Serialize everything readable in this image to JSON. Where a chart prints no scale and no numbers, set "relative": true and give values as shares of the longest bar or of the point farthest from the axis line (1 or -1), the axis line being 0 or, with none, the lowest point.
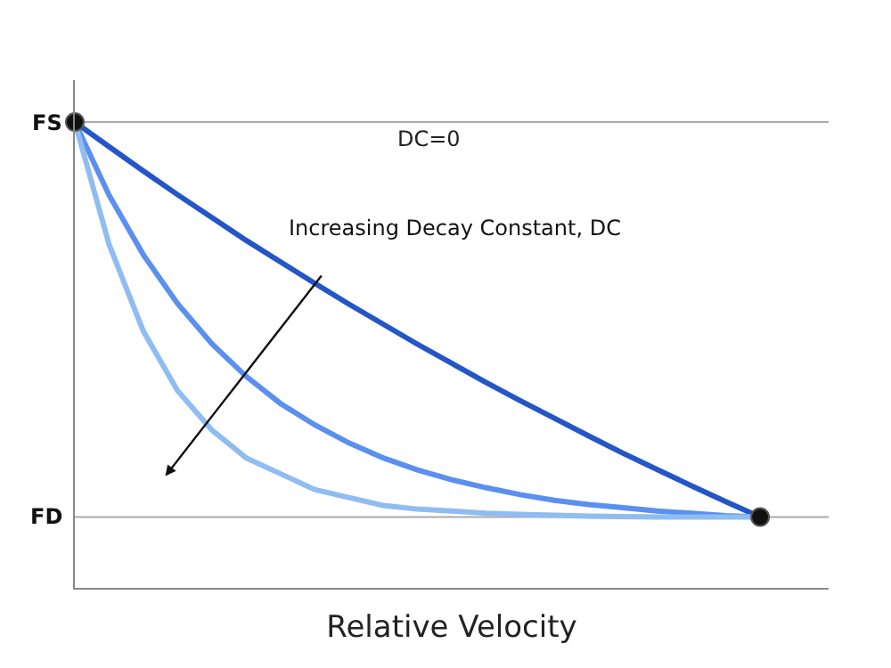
{
  "chart_data": {
    "type": "line",
    "xlabel": "Relative Velocity",
    "relative": true,
    "categories": [
      null,
      null,
      null,
      null,
      null,
      null,
      null,
      null,
      null,
      null,
      null,
      null,
      null,
      null,
      null,
      null,
      null,
      null,
      null,
      null,
      null
    ],
    "tick_labels": false,
    "marker": "none",
    "line_style": "solid",
    "ref_lines": [
      {
        "axis": "y",
        "value": 1,
        "label": "FS",
        "color": "#aaaaaa"
      },
      {
        "axis": "y",
        "value": 0.152,
        "label": "FD",
        "color": "#aaaaaa"
      }
    ],
    "series": [
      {
        "color": "#2456c8",
        "values": [
          1,
          0.947,
          0.895,
          0.844,
          0.795,
          0.746,
          0.7,
          0.654,
          0.609,
          0.566,
          0.523,
          0.482,
          0.441,
          0.402,
          0.364,
          0.326,
          0.289,
          0.254,
          0.219,
          0.185,
          0.152
        ]
      },
      {
        "color": "#5b8ff0",
        "values": [
          1,
          0.843,
          0.715,
          0.61,
          0.524,
          0.454,
          0.396,
          0.35,
          0.311,
          0.279,
          0.253,
          0.232,
          0.215,
          0.2,
          0.188,
          0.179,
          0.172,
          0.165,
          0.16,
          0.155,
          0.152
        ]
      },
      {
        "color": "#8fbdf2",
        "values": [
          1,
          0.737,
          0.551,
          0.423,
          0.339,
          0.279,
          0.245,
          0.211,
          0.194,
          0.177,
          0.169,
          0.165,
          0.16,
          0.158,
          0.156,
          0.154,
          0.153,
          0.152,
          0.152,
          0.152,
          0.152
        ]
      },
      {
        "color": "#111111",
        "marker": "circle",
        "values": [
          1,
          null,
          null,
          null,
          null,
          null,
          null,
          null,
          null,
          null,
          null,
          null,
          null,
          null,
          null,
          null,
          null,
          null,
          null,
          null,
          0.152
        ]
      }
    ],
    "annotations": [
      "DC=0",
      "Increasing Decay Constant, DC"
    ]
  }
}
